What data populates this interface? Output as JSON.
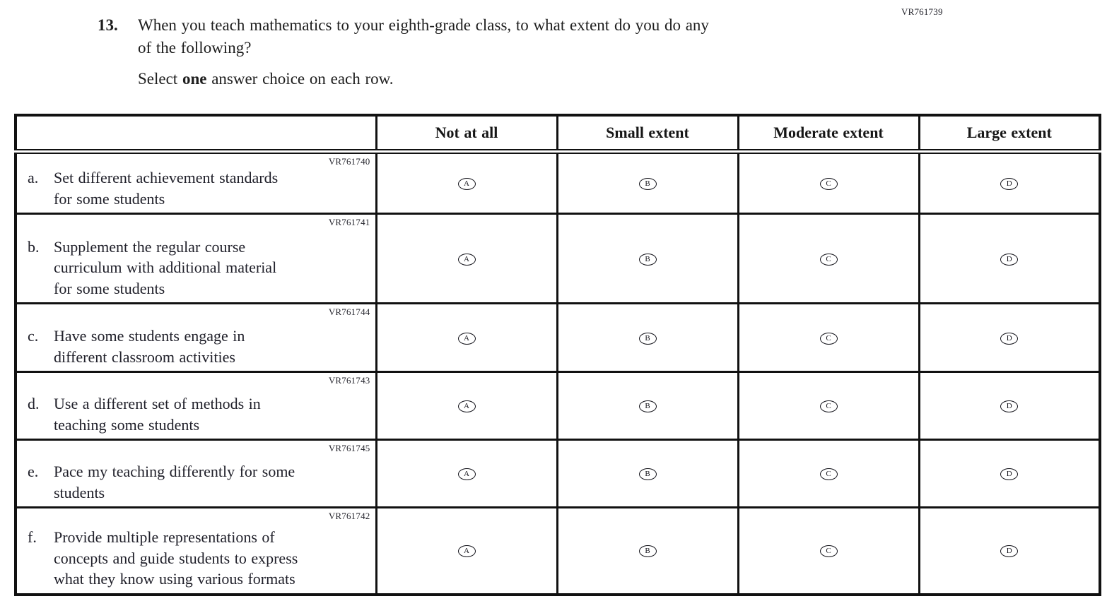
{
  "page": {
    "code": "VR761739"
  },
  "question": {
    "number": "13.",
    "text": "When you teach mathematics to your eighth-grade class, to what extent do you do any\nof the following?",
    "instruction_prefix": "Select ",
    "instruction_bold": "one",
    "instruction_suffix": " answer choice on each row."
  },
  "table": {
    "columns": [
      "Not at all",
      "Small extent",
      "Moderate extent",
      "Large extent"
    ],
    "option_letters": [
      "A",
      "B",
      "C",
      "D"
    ],
    "rows": [
      {
        "code": "VR761740",
        "letter": "a.",
        "text": "Set different achievement standards\nfor some students"
      },
      {
        "code": "VR761741",
        "letter": "b.",
        "text": "Supplement the regular course\ncurriculum with additional material\nfor some students"
      },
      {
        "code": "VR761744",
        "letter": "c.",
        "text": "Have some students engage in\ndifferent classroom activities"
      },
      {
        "code": "VR761743",
        "letter": "d.",
        "text": "Use a different set of methods in\nteaching some students"
      },
      {
        "code": "VR761745",
        "letter": "e.",
        "text": "Pace my teaching differently for some\nstudents"
      },
      {
        "code": "VR761742",
        "letter": "f.",
        "text": "Provide multiple representations of\nconcepts and guide students to express\nwhat they know using various formats"
      }
    ]
  }
}
